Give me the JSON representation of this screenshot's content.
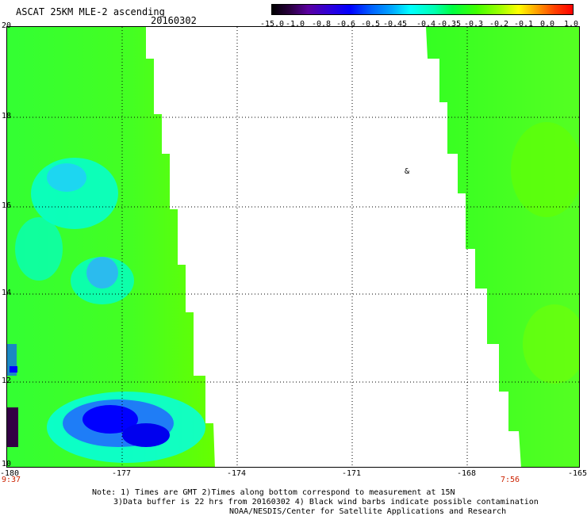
{
  "header": {
    "title": "ASCAT 25KM MLE-2 ascending",
    "date": "20160302"
  },
  "colorbar": {
    "ticks": [
      "-15.0",
      "-1.0",
      "-0.8",
      "-0.6",
      "-0.5",
      "-0.45",
      "-0.4",
      "-0.35",
      "-0.3",
      "-0.2",
      "-0.1",
      "0.0",
      "1.0"
    ]
  },
  "map": {
    "lat_labels": [
      "20",
      "18",
      "16",
      "14",
      "12",
      "10"
    ],
    "lon_labels": [
      "-180",
      "-177",
      "-174",
      "-171",
      "-168",
      "-165"
    ],
    "start_time": "9:37",
    "end_time": "7:56",
    "barb_glyph": "&"
  },
  "footer": {
    "line1": "Note: 1) Times are GMT 2)Times along bottom correspond to measurement at 15N",
    "line2": "3)Data buffer is 22 hrs from 20160302 4) Black wind barbs indicate possible contamination",
    "line3": "NOAA/NESDIS/Center for Satellite Applications and Research"
  }
}
